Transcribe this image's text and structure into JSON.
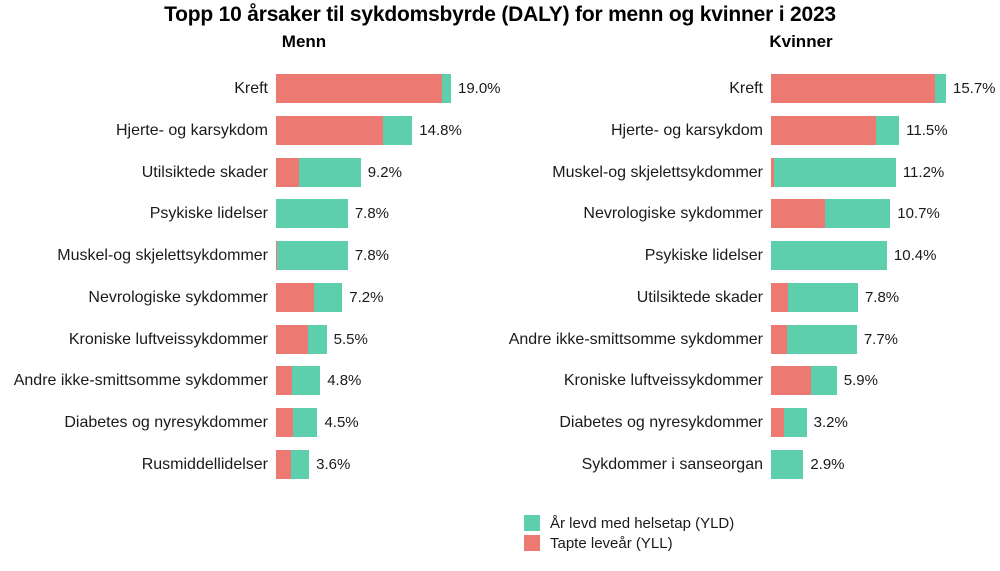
{
  "title": "Topp 10 årsaker til sykdomsbyrde (DALY) for menn og kvinner i 2023",
  "colors": {
    "yld": "#5ECFAD",
    "yll": "#EC7A72"
  },
  "legend": {
    "items": [
      {
        "label": "År levd med helsetap (YLD)",
        "series": "yld"
      },
      {
        "label": "Tapte leveår (YLL)",
        "series": "yll"
      }
    ]
  },
  "chart_data": {
    "type": "bar",
    "orientation": "horizontal",
    "stacked": true,
    "unit": "%",
    "title": "Topp 10 årsaker til sykdomsbyrde (DALY) for menn og kvinner i 2023",
    "legend_position": "bottom-center",
    "series_names": [
      "Tapte leveår (YLL)",
      "År levd med helsetap (YLD)"
    ],
    "panels": [
      {
        "title": "Menn",
        "categories": [
          "Kreft",
          "Hjerte- og karsykdom",
          "Utilsiktede skader",
          "Psykiske lidelser",
          "Muskel-og skjelettsykdommer",
          "Nevrologiske sykdommer",
          "Kroniske luftveissykdommer",
          "Andre ikke-smittsomme sykdommer",
          "Diabetes og nyresykdommer",
          "Rusmiddellidelser"
        ],
        "series": [
          {
            "name": "Tapte leveår (YLL)",
            "values": [
              18.0,
              11.6,
              2.5,
              0.0,
              0.1,
              4.1,
              3.5,
              1.7,
              1.8,
              1.6
            ]
          },
          {
            "name": "År levd med helsetap (YLD)",
            "values": [
              1.0,
              3.2,
              6.7,
              7.8,
              7.7,
              3.1,
              2.0,
              3.1,
              2.7,
              2.0
            ]
          }
        ],
        "totals": [
          19.0,
          14.8,
          9.2,
          7.8,
          7.8,
          7.2,
          5.5,
          4.8,
          4.5,
          3.6
        ],
        "value_labels": [
          "19.0%",
          "14.8%",
          "9.2%",
          "7.8%",
          "7.8%",
          "7.2%",
          "5.5%",
          "4.8%",
          "4.5%",
          "3.6%"
        ]
      },
      {
        "title": "Kvinner",
        "categories": [
          "Kreft",
          "Hjerte- og karsykdom",
          "Muskel-og skjelettsykdommer",
          "Nevrologiske sykdommer",
          "Psykiske lidelser",
          "Utilsiktede skader",
          "Andre ikke-smittsomme sykdommer",
          "Kroniske luftveissykdommer",
          "Diabetes og nyresykdommer",
          "Sykdommer i sanseorgan"
        ],
        "series": [
          {
            "name": "Tapte leveår (YLL)",
            "values": [
              14.7,
              9.4,
              0.3,
              4.8,
              0.0,
              1.5,
              1.4,
              3.6,
              1.2,
              0.0
            ]
          },
          {
            "name": "År levd med helsetap (YLD)",
            "values": [
              1.0,
              2.1,
              10.9,
              5.9,
              10.4,
              6.3,
              6.3,
              2.3,
              2.0,
              2.9
            ]
          }
        ],
        "totals": [
          15.7,
          11.5,
          11.2,
          10.7,
          10.4,
          7.8,
          7.7,
          5.9,
          3.2,
          2.9
        ],
        "value_labels": [
          "15.7%",
          "11.5%",
          "11.2%",
          "10.7%",
          "10.4%",
          "7.8%",
          "7.7%",
          "5.9%",
          "3.2%",
          "2.9%"
        ]
      }
    ]
  }
}
